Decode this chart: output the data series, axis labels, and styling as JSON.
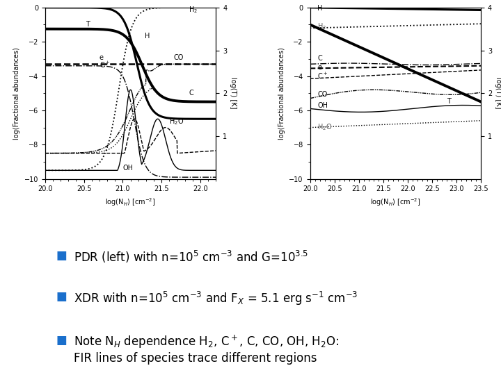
{
  "fig_width": 7.2,
  "fig_height": 5.4,
  "dpi": 100,
  "bg_color": "#ffffff",
  "bullet_color": "#1a6fcc",
  "bullet_items": [
    "PDR (left) with n=10$^5$ cm$^{-3}$ and G=10$^{3.5}$",
    "XDR with n=10$^5$ cm$^{-3}$ and F$_X$ = 5.1 erg s$^{-1}$ cm$^{-3}$",
    "Note N$_H$ dependence H$_2$, C$^+$, C, CO, OH, H$_2$O:\nFIR lines of species trace different regions"
  ],
  "text_fontsize": 12,
  "left_xlim": [
    20.0,
    22.2
  ],
  "left_xlabel": "log(N$_H$) [cm$^{-2}$]",
  "left_ylabel": "log(Fractional abundances)",
  "left_ylabel2": "log(T) [K]",
  "left_yticks": [
    0,
    -2,
    -4,
    -6,
    -8,
    -10
  ],
  "left_xticks": [
    20.0,
    20.5,
    21.0,
    21.5,
    22.0
  ],
  "right_xlim": [
    20.0,
    23.5
  ],
  "right_xlabel": "log(N$_H$) [cm$^{-2}$]",
  "right_ylabel": "log(Fractional abundances)",
  "right_ylabel2": "log(T) [K]",
  "right_yticks": [
    0,
    -2,
    -4,
    -6,
    -8,
    -10
  ],
  "right_xticks": [
    20.0,
    20.5,
    21.0,
    21.5,
    22.0,
    22.5,
    23.0,
    23.5
  ]
}
